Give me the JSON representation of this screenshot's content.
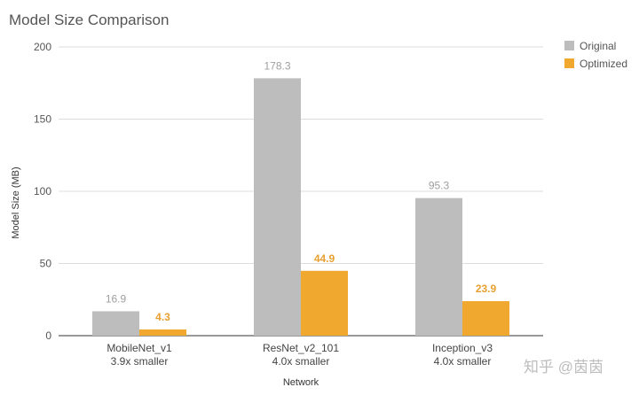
{
  "chart_data": {
    "type": "bar",
    "title": "Model Size Comparison",
    "xlabel": "Network",
    "ylabel": "Model Size (MB)",
    "ylim": [
      0,
      200
    ],
    "yticks": [
      0,
      50,
      100,
      150,
      200
    ],
    "grid": true,
    "legend_position": "top-right",
    "categories": [
      "MobileNet_v1",
      "ResNet_v2_101",
      "Inception_v3"
    ],
    "subcategories": [
      "3.9x smaller",
      "4.0x smaller",
      "4.0x smaller"
    ],
    "series": [
      {
        "name": "Original",
        "values": [
          16.9,
          178.3,
          95.3
        ],
        "labels": [
          "16.9",
          "178.3",
          "95.3"
        ],
        "color": "#bdbdbd"
      },
      {
        "name": "Optimized",
        "values": [
          4.3,
          44.9,
          23.9
        ],
        "labels": [
          "4.3",
          "44.9",
          "23.9"
        ],
        "color": "#f0a92e"
      }
    ]
  },
  "watermark": "知乎 @茵茵"
}
